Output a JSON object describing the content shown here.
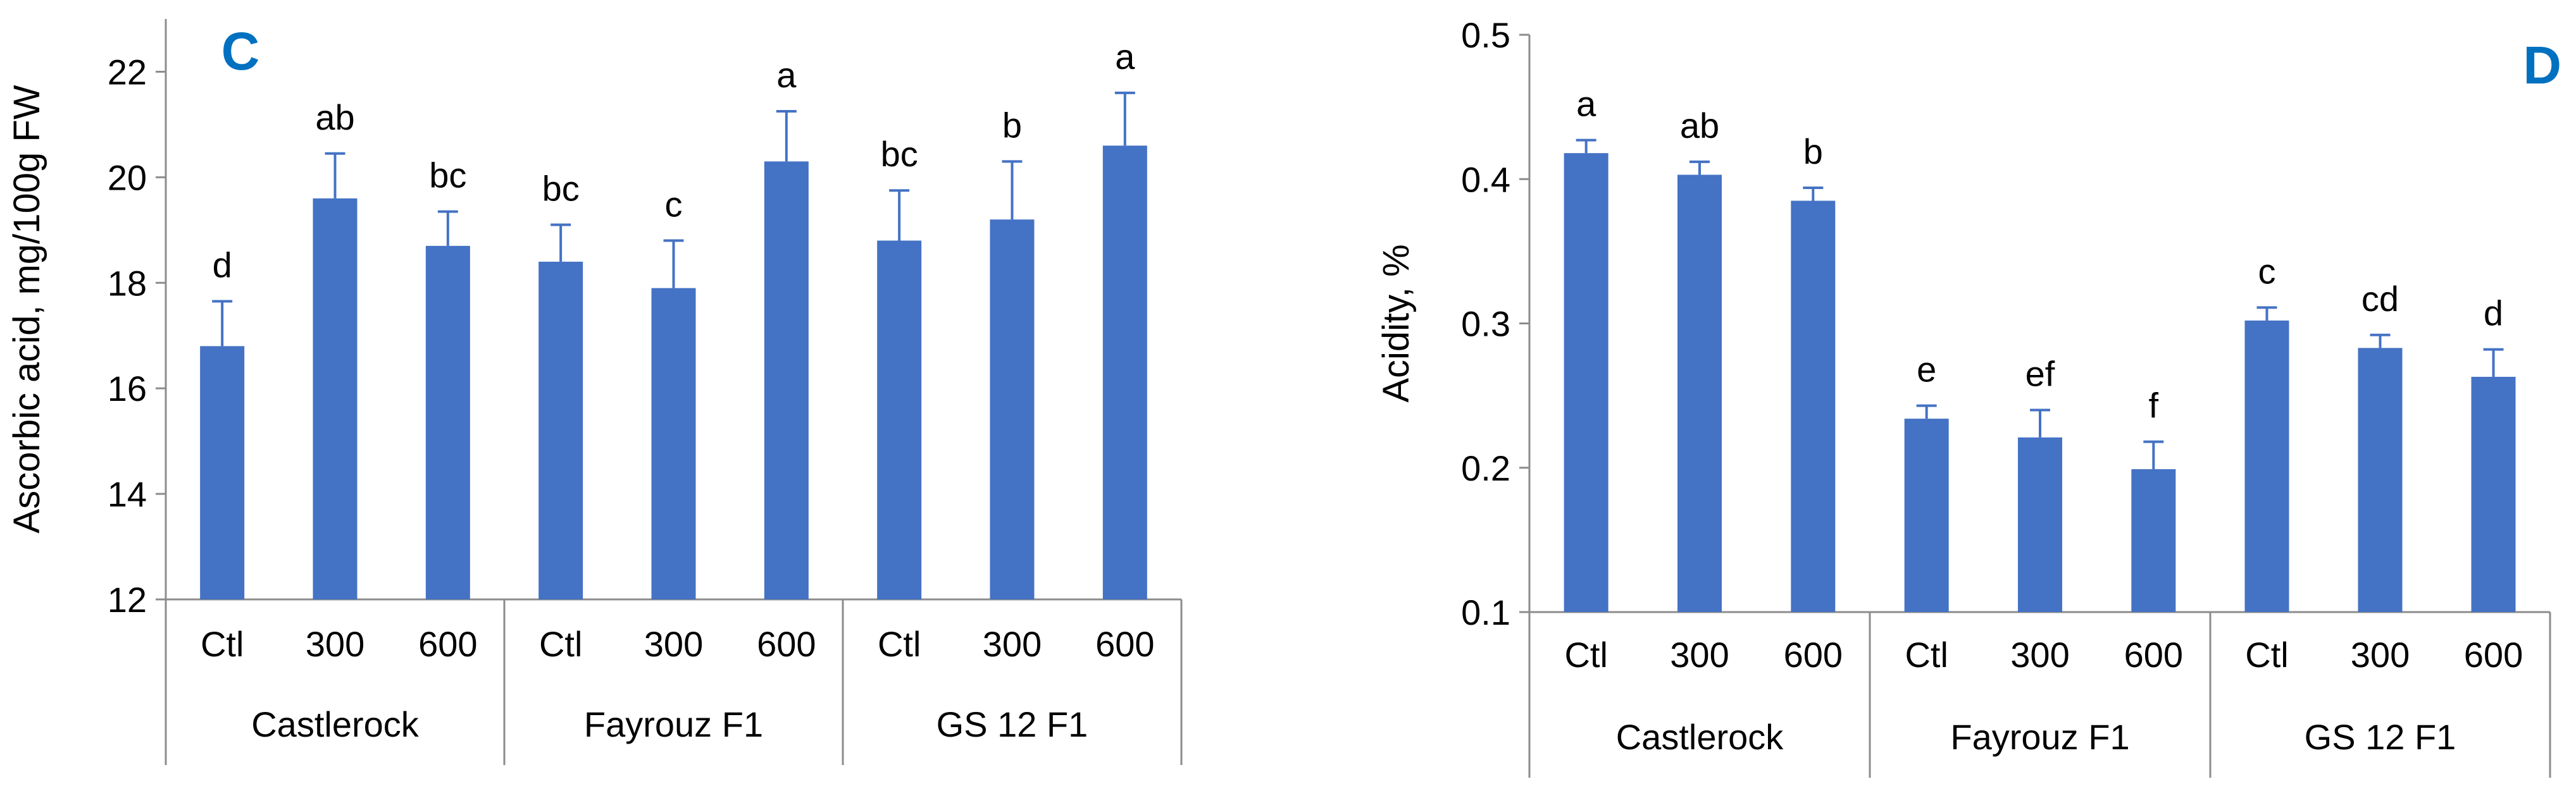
{
  "chart_data": [
    {
      "type": "bar",
      "panel_label": "C",
      "title": "",
      "xlabel": "",
      "ylabel": "Ascorbic acid, mg/100g  FW",
      "ylim": [
        12,
        23
      ],
      "yticks": [
        "12",
        "14",
        "16",
        "18",
        "20",
        "22"
      ],
      "ytick_values": [
        12,
        14,
        16,
        18,
        20,
        22
      ],
      "grid": false,
      "groups": [
        {
          "name": "Castlerock",
          "categories": [
            "Ctl",
            "300",
            "600"
          ]
        },
        {
          "name": "Fayrouz F1",
          "categories": [
            "Ctl",
            "300",
            "600"
          ]
        },
        {
          "name": "GS 12   F1",
          "categories": [
            "Ctl",
            "300",
            "600"
          ]
        }
      ],
      "values": [
        16.8,
        19.6,
        18.7,
        18.4,
        17.9,
        20.3,
        18.8,
        19.2,
        20.6
      ],
      "errors": [
        0.85,
        0.85,
        0.65,
        0.7,
        0.9,
        0.95,
        0.95,
        1.1,
        1.0
      ],
      "letters": [
        "d",
        "ab",
        "bc",
        "bc",
        "c",
        "a",
        "bc",
        "b",
        "a"
      ],
      "colors": {
        "bar": "#4472C4",
        "axis": "#8C8C8C",
        "panel_label": "#0070C0"
      }
    },
    {
      "type": "bar",
      "panel_label": "D",
      "title": "",
      "xlabel": "",
      "ylabel": "Acidity, %",
      "ylim": [
        0.1,
        0.5
      ],
      "yticks": [
        "0.1",
        "0.2",
        "0.3",
        "0.4",
        "0.5"
      ],
      "ytick_values": [
        0.1,
        0.2,
        0.3,
        0.4,
        0.5
      ],
      "grid": false,
      "groups": [
        {
          "name": "Castlerock",
          "categories": [
            "Ctl",
            "300",
            "600"
          ]
        },
        {
          "name": "Fayrouz F1",
          "categories": [
            "Ctl",
            "300",
            "600"
          ]
        },
        {
          "name": "GS 12   F1",
          "categories": [
            "Ctl",
            "300",
            "600"
          ]
        }
      ],
      "values": [
        0.418,
        0.403,
        0.385,
        0.234,
        0.221,
        0.199,
        0.302,
        0.283,
        0.263
      ],
      "errors": [
        0.009,
        0.009,
        0.009,
        0.009,
        0.019,
        0.019,
        0.009,
        0.009,
        0.019
      ],
      "letters": [
        "a",
        "ab",
        "b",
        "e",
        "ef",
        "f",
        "c",
        "cd",
        "d"
      ],
      "colors": {
        "bar": "#4472C4",
        "axis": "#8C8C8C",
        "panel_label": "#0070C0"
      }
    }
  ]
}
